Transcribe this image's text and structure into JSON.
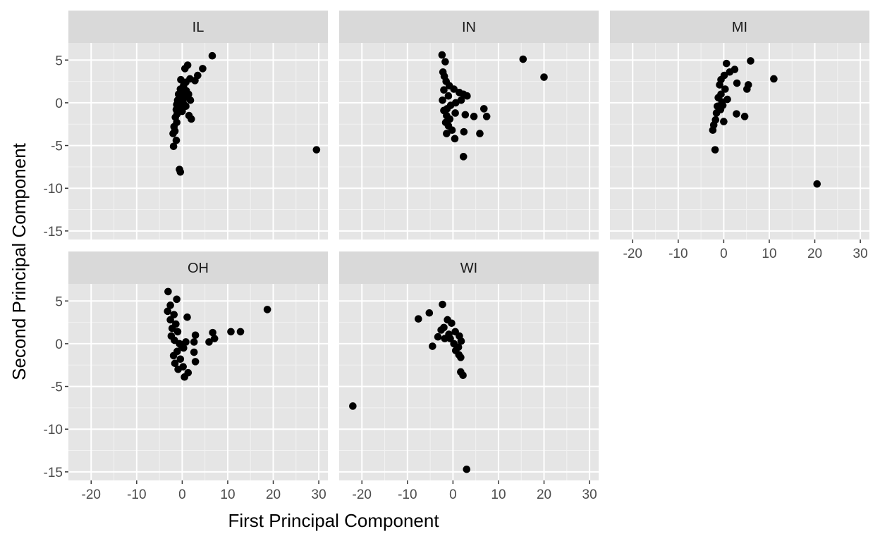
{
  "chart_data": {
    "type": "scatter",
    "xlabel": "First Principal Component",
    "ylabel": "Second Principal Component",
    "xlim": [
      -25,
      32
    ],
    "ylim": [
      -16,
      7
    ],
    "x_ticks": [
      -20,
      -10,
      0,
      10,
      20,
      30
    ],
    "y_ticks": [
      5,
      0,
      -5,
      -10,
      -15
    ],
    "grid": true,
    "point_color": "#000000",
    "panel_background": "#e5e5e5",
    "strip_background": "#d9d9d9",
    "panels": [
      {
        "name": "IL",
        "points": [
          [
            6.6,
            5.5
          ],
          [
            4.5,
            4.0
          ],
          [
            1.2,
            4.4
          ],
          [
            0.6,
            4.0
          ],
          [
            3.4,
            3.2
          ],
          [
            2.8,
            2.6
          ],
          [
            -0.3,
            2.7
          ],
          [
            1.7,
            2.8
          ],
          [
            0.8,
            2.4
          ],
          [
            0.3,
            2.0
          ],
          [
            -0.4,
            1.6
          ],
          [
            0.0,
            1.2
          ],
          [
            1.4,
            1.0
          ],
          [
            -0.8,
            1.0
          ],
          [
            0.5,
            0.6
          ],
          [
            -1.0,
            0.3
          ],
          [
            0.2,
            0.0
          ],
          [
            -1.2,
            -0.2
          ],
          [
            0.8,
            -0.4
          ],
          [
            -0.5,
            -0.6
          ],
          [
            -1.3,
            -0.8
          ],
          [
            0.0,
            -1.0
          ],
          [
            -1.1,
            -1.3
          ],
          [
            1.5,
            -1.5
          ],
          [
            2.0,
            -1.9
          ],
          [
            -1.5,
            -1.7
          ],
          [
            -1.2,
            -2.3
          ],
          [
            -1.8,
            -2.8
          ],
          [
            -1.6,
            -3.3
          ],
          [
            -2.0,
            -3.6
          ],
          [
            -1.3,
            -4.4
          ],
          [
            -1.9,
            -5.1
          ],
          [
            -0.6,
            -7.8
          ],
          [
            -0.4,
            -8.1
          ],
          [
            29.5,
            -5.5
          ],
          [
            1.8,
            0.3
          ],
          [
            -0.2,
            0.5
          ],
          [
            0.9,
            1.4
          ]
        ]
      },
      {
        "name": "IN",
        "points": [
          [
            15.4,
            5.1
          ],
          [
            20.0,
            3.0
          ],
          [
            -2.4,
            5.6
          ],
          [
            -1.7,
            4.8
          ],
          [
            -2.2,
            3.6
          ],
          [
            -1.9,
            3.1
          ],
          [
            -1.5,
            2.5
          ],
          [
            -0.8,
            2.0
          ],
          [
            0.2,
            1.6
          ],
          [
            1.4,
            1.2
          ],
          [
            2.3,
            1.0
          ],
          [
            3.1,
            0.8
          ],
          [
            1.8,
            0.3
          ],
          [
            0.6,
            0.0
          ],
          [
            -0.5,
            -0.3
          ],
          [
            -1.3,
            -0.7
          ],
          [
            -2.0,
            -0.9
          ],
          [
            -1.4,
            -1.5
          ],
          [
            -0.7,
            -1.9
          ],
          [
            -1.6,
            -2.3
          ],
          [
            -1.0,
            -2.7
          ],
          [
            -0.2,
            -3.2
          ],
          [
            -1.4,
            -3.6
          ],
          [
            0.4,
            -4.2
          ],
          [
            2.4,
            -3.4
          ],
          [
            2.7,
            -1.4
          ],
          [
            4.6,
            -1.6
          ],
          [
            6.8,
            -0.7
          ],
          [
            7.4,
            -1.6
          ],
          [
            5.9,
            -3.6
          ],
          [
            2.3,
            -6.3
          ],
          [
            -2.3,
            0.3
          ],
          [
            -1.0,
            0.8
          ],
          [
            0.5,
            -1.2
          ],
          [
            -2.0,
            1.5
          ]
        ]
      },
      {
        "name": "MI",
        "points": [
          [
            5.9,
            4.9
          ],
          [
            0.6,
            4.6
          ],
          [
            2.4,
            3.9
          ],
          [
            1.3,
            3.6
          ],
          [
            0.1,
            3.2
          ],
          [
            -0.6,
            2.7
          ],
          [
            -0.9,
            2.1
          ],
          [
            2.9,
            2.3
          ],
          [
            5.4,
            2.1
          ],
          [
            5.1,
            1.6
          ],
          [
            11.0,
            2.8
          ],
          [
            0.3,
            1.6
          ],
          [
            -0.6,
            1.0
          ],
          [
            -1.2,
            0.6
          ],
          [
            -0.4,
            0.1
          ],
          [
            -1.4,
            -0.4
          ],
          [
            -0.7,
            -0.8
          ],
          [
            -1.6,
            -1.2
          ],
          [
            2.8,
            -1.3
          ],
          [
            4.6,
            -1.6
          ],
          [
            0.0,
            -2.2
          ],
          [
            -1.8,
            -2.0
          ],
          [
            -2.2,
            -2.6
          ],
          [
            -2.4,
            -3.2
          ],
          [
            -1.9,
            -5.5
          ],
          [
            20.5,
            -9.5
          ],
          [
            0.8,
            0.4
          ],
          [
            -0.2,
            -0.3
          ]
        ]
      },
      {
        "name": "OH",
        "points": [
          [
            -3.1,
            6.1
          ],
          [
            -1.2,
            5.2
          ],
          [
            -2.6,
            4.5
          ],
          [
            -3.2,
            3.8
          ],
          [
            -1.8,
            3.4
          ],
          [
            -2.6,
            2.8
          ],
          [
            -1.4,
            2.3
          ],
          [
            -2.2,
            1.8
          ],
          [
            -1.0,
            1.4
          ],
          [
            -2.4,
            0.9
          ],
          [
            -1.7,
            0.4
          ],
          [
            -0.6,
            0.0
          ],
          [
            0.3,
            -0.5
          ],
          [
            -1.1,
            -0.9
          ],
          [
            -1.9,
            -1.4
          ],
          [
            -0.4,
            -1.8
          ],
          [
            -1.6,
            -2.3
          ],
          [
            0.2,
            -2.7
          ],
          [
            -0.9,
            -3.0
          ],
          [
            1.3,
            -3.4
          ],
          [
            0.5,
            -3.9
          ],
          [
            2.9,
            -2.1
          ],
          [
            2.6,
            -1.0
          ],
          [
            2.9,
            1.0
          ],
          [
            2.6,
            0.2
          ],
          [
            1.1,
            3.1
          ],
          [
            5.9,
            0.2
          ],
          [
            7.1,
            0.6
          ],
          [
            6.7,
            1.3
          ],
          [
            10.7,
            1.4
          ],
          [
            12.8,
            1.4
          ],
          [
            18.7,
            4.0
          ],
          [
            -0.2,
            -0.2
          ],
          [
            0.8,
            0.2
          ]
        ]
      },
      {
        "name": "WI",
        "points": [
          [
            -7.6,
            2.9
          ],
          [
            -5.2,
            3.6
          ],
          [
            -2.3,
            4.6
          ],
          [
            -4.5,
            -0.3
          ],
          [
            -3.3,
            0.8
          ],
          [
            -2.0,
            1.9
          ],
          [
            -1.2,
            2.8
          ],
          [
            -0.3,
            2.4
          ],
          [
            0.5,
            1.4
          ],
          [
            1.4,
            0.9
          ],
          [
            1.8,
            0.3
          ],
          [
            1.2,
            -0.4
          ],
          [
            0.6,
            -0.8
          ],
          [
            1.3,
            -1.3
          ],
          [
            1.7,
            -1.6
          ],
          [
            1.7,
            -3.3
          ],
          [
            2.2,
            -3.7
          ],
          [
            -0.6,
            0.6
          ],
          [
            -1.8,
            0.6
          ],
          [
            0.2,
            0.0
          ],
          [
            -22.0,
            -7.3
          ],
          [
            3.0,
            -14.7
          ],
          [
            -2.6,
            1.6
          ],
          [
            -0.9,
            1.1
          ]
        ]
      }
    ]
  }
}
